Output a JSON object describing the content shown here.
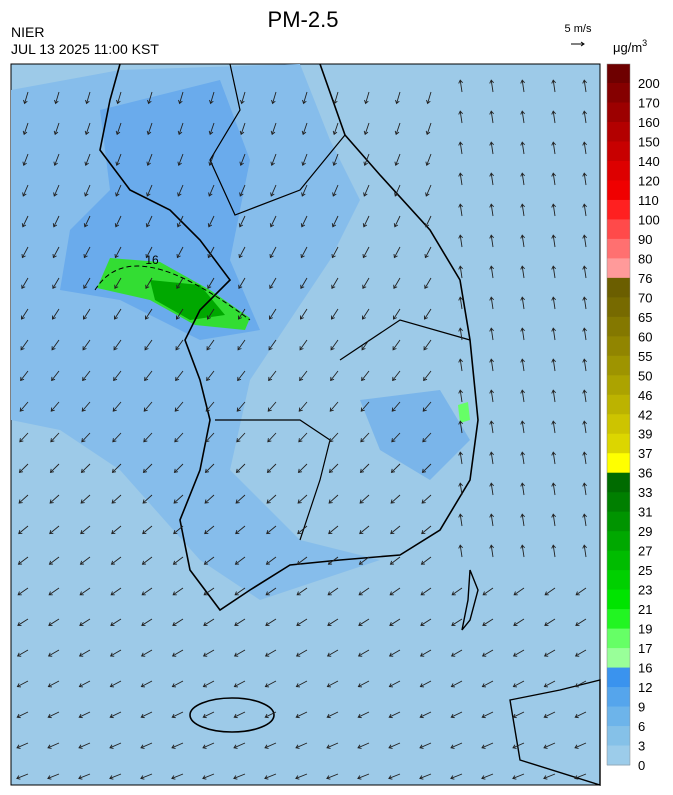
{
  "header": {
    "title": "PM-2.5",
    "source": "NIER",
    "timestamp": "JUL 13 2025 11:00 KST",
    "wind_scale": "5 m/s",
    "unit": "μg/m",
    "unit_exponent": "3"
  },
  "map": {
    "contour_label": "16"
  },
  "colorbar": {
    "labels": [
      200,
      170,
      160,
      150,
      140,
      120,
      110,
      100,
      90,
      80,
      76,
      70,
      65,
      60,
      55,
      50,
      46,
      42,
      39,
      37,
      36,
      33,
      31,
      29,
      27,
      25,
      23,
      21,
      19,
      17,
      16,
      12,
      9,
      6,
      3,
      0
    ],
    "colors": [
      "#6e0000",
      "#850000",
      "#9c0000",
      "#b30000",
      "#c80000",
      "#dd0000",
      "#f00000",
      "#ff2020",
      "#ff4a4a",
      "#ff7070",
      "#ff9a9a",
      "#6b5e00",
      "#776a00",
      "#847800",
      "#918500",
      "#9e9400",
      "#aca300",
      "#bcb300",
      "#cdc400",
      "#dcd600",
      "#ffff00",
      "#006b00",
      "#007f00",
      "#009400",
      "#00a800",
      "#00bc00",
      "#00d000",
      "#00e400",
      "#22f522",
      "#66ff66",
      "#99ff99",
      "#3a93ee",
      "#55a5ec",
      "#6db4ea",
      "#85c1e8",
      "#9cccea"
    ]
  }
}
